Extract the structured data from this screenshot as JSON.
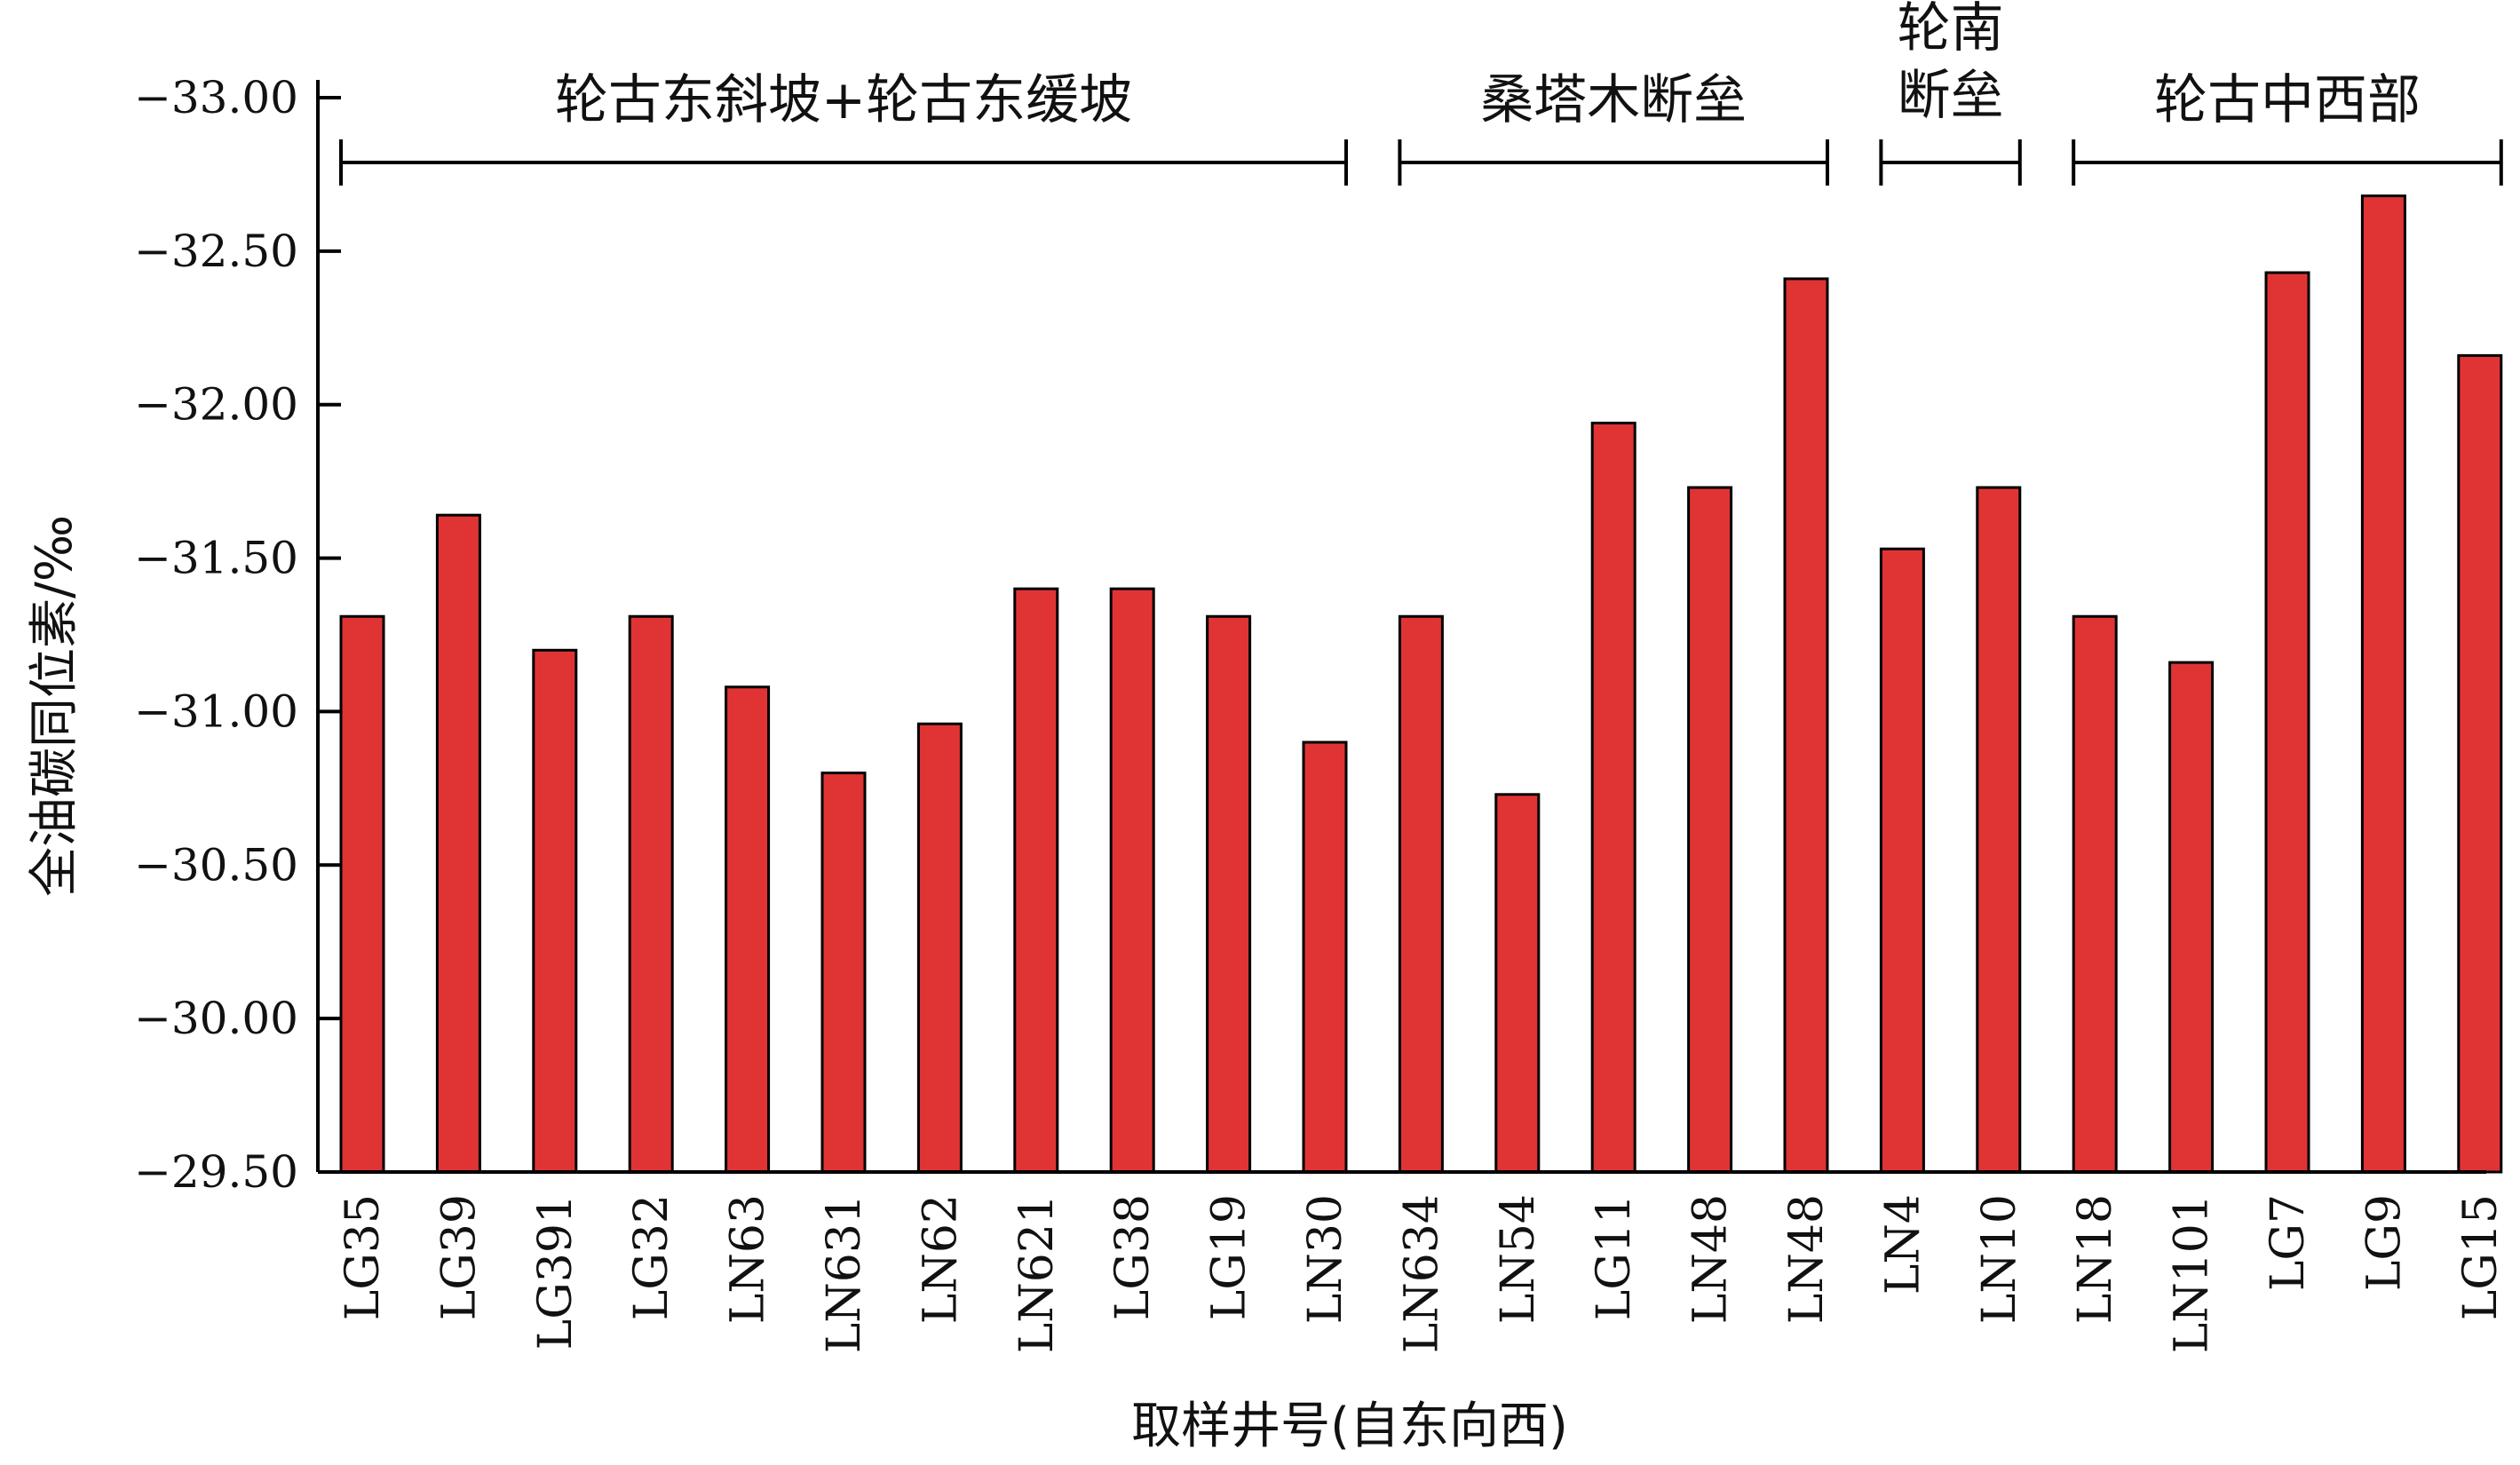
{
  "chart_data": {
    "type": "bar",
    "title": "",
    "xlabel": "取样井号(自东向西)",
    "ylabel": "全油碳同位素/‰",
    "ylim": [
      -29.5,
      -33.0
    ],
    "y_axis_inverted": true,
    "y_ticks": [
      -33.0,
      -32.5,
      -32.0,
      -31.5,
      -31.0,
      -30.5,
      -30.0,
      -29.5
    ],
    "y_tick_labels": [
      "−33.00",
      "−32.50",
      "−32.00",
      "−31.50",
      "−31.00",
      "−30.50",
      "−30.00",
      "−29.50"
    ],
    "grid": false,
    "bar_color": "#e03434",
    "categories": [
      "LG35",
      "LG39",
      "LG391",
      "LG32",
      "LN63",
      "LN631",
      "LN62",
      "LN621",
      "LG38",
      "LG19",
      "LN30",
      "LN634",
      "LN54",
      "LG11",
      "LN48",
      "LN48",
      "LN4",
      "LN10",
      "LN18",
      "LN101",
      "LG7",
      "LG9",
      "LG15"
    ],
    "values": [
      -31.31,
      -31.64,
      -31.2,
      -31.31,
      -31.08,
      -30.8,
      -30.96,
      -31.4,
      -31.4,
      -31.31,
      -30.9,
      -31.31,
      -30.73,
      -31.94,
      -31.73,
      -32.41,
      -31.53,
      -31.73,
      -31.31,
      -31.16,
      -32.43,
      -32.68,
      -32.16
    ],
    "groups": [
      {
        "label": "轮古东斜坡+轮古东缓坡",
        "from": 0,
        "to": 10
      },
      {
        "label": "桑塔木断垒",
        "from": 11,
        "to": 15
      },
      {
        "label": "轮南",
        "label2": "断垒",
        "from": 16,
        "to": 17
      },
      {
        "label": "轮古中西部",
        "from": 18,
        "to": 22
      }
    ]
  }
}
